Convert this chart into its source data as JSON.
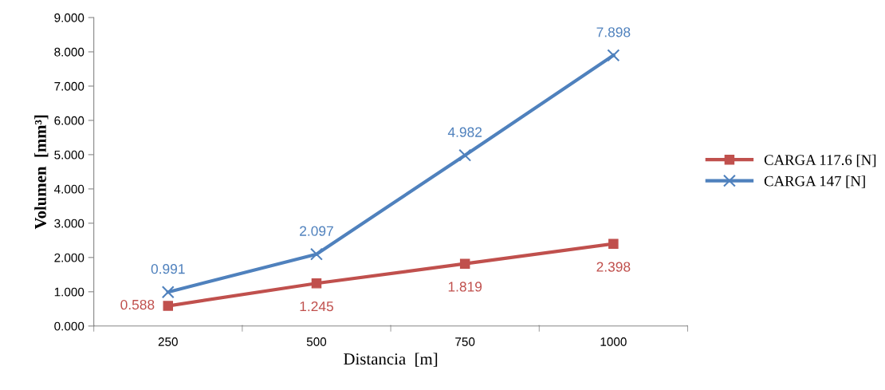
{
  "chart_data": {
    "type": "line",
    "xlabel": "Distancia  [m]",
    "ylabel": "Volumen  [mm³]",
    "categories": [
      "250",
      "500",
      "750",
      "1000"
    ],
    "ylim": [
      0,
      9
    ],
    "yticks": [
      {
        "value": 0,
        "label": "0.000"
      },
      {
        "value": 1,
        "label": "1.000"
      },
      {
        "value": 2,
        "label": "2.000"
      },
      {
        "value": 3,
        "label": "3.000"
      },
      {
        "value": 4,
        "label": "4.000"
      },
      {
        "value": 5,
        "label": "5.000"
      },
      {
        "value": 6,
        "label": "6.000"
      },
      {
        "value": 7,
        "label": "7.000"
      },
      {
        "value": 8,
        "label": "8.000"
      },
      {
        "value": 9,
        "label": "9.000"
      }
    ],
    "grid": false,
    "legend": "right",
    "line_style": "solid",
    "series": [
      {
        "name": "CARGA 117.6 [N]",
        "color": "#c0504d",
        "marker": "square",
        "values": [
          0.588,
          1.245,
          1.819,
          2.398
        ],
        "value_labels": [
          "0.588",
          "1.245",
          "1.819",
          "2.398"
        ]
      },
      {
        "name": "CARGA 147 [N]",
        "color": "#4f81bd",
        "marker": "cross",
        "values": [
          0.991,
          2.097,
          4.982,
          7.898
        ],
        "value_labels": [
          "0.991",
          "2.097",
          "4.982",
          "7.898"
        ]
      }
    ]
  }
}
